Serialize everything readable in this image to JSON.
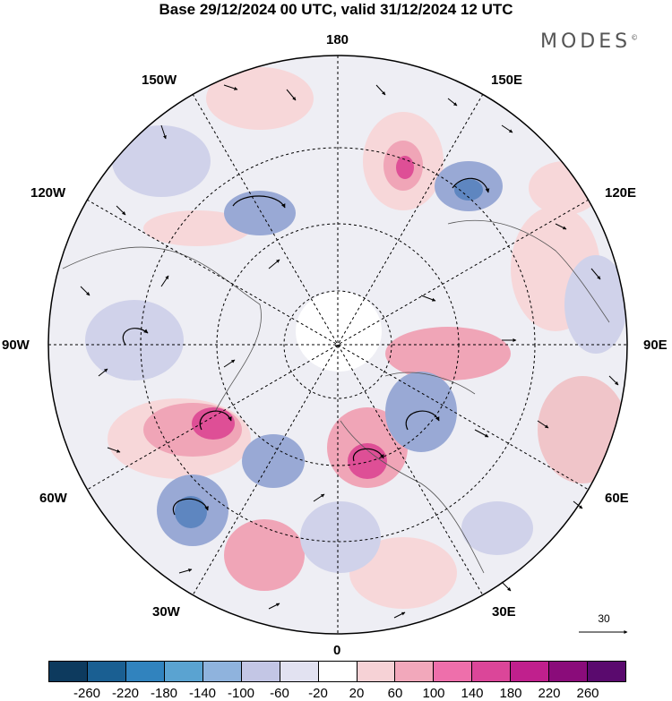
{
  "header": {
    "title": "Base 29/12/2024 00 UTC, valid 31/12/2024 12 UTC",
    "brand": "MODES",
    "brand_mark": "©"
  },
  "map": {
    "projection": "north-polar-stereographic",
    "longitude_labels": {
      "top": "180",
      "w150": "150W",
      "e150": "150E",
      "w120": "120W",
      "e120": "120E",
      "w90": "90W",
      "e90": "90E",
      "w60": "60W",
      "e60": "60E",
      "w30": "30W",
      "e30": "30E",
      "bottom": "0"
    },
    "vector_scale_label": "30",
    "colors": {
      "land": "#e6e6e6",
      "pos_light": "#f7d7d9",
      "pos_mid": "#f0a5b7",
      "pos_strong": "#de4f96",
      "neg_light": "#d0d2ea",
      "neg_mid": "#99a9d5",
      "neg_strong": "#5e86c0"
    }
  },
  "colorbar": {
    "ticks": [
      "-260",
      "-220",
      "-180",
      "-140",
      "-100",
      "-60",
      "-20",
      "20",
      "60",
      "100",
      "140",
      "180",
      "220",
      "260"
    ],
    "colors": [
      "#0d3a5e",
      "#1a5f92",
      "#3183be",
      "#5aa3d1",
      "#8fb3dd",
      "#c3c6e5",
      "#e2e2f1",
      "#ffffff",
      "#f6d2d6",
      "#f2a8bb",
      "#ee6fab",
      "#db4699",
      "#c0208d",
      "#8a0c7a",
      "#5a0a6e"
    ]
  }
}
